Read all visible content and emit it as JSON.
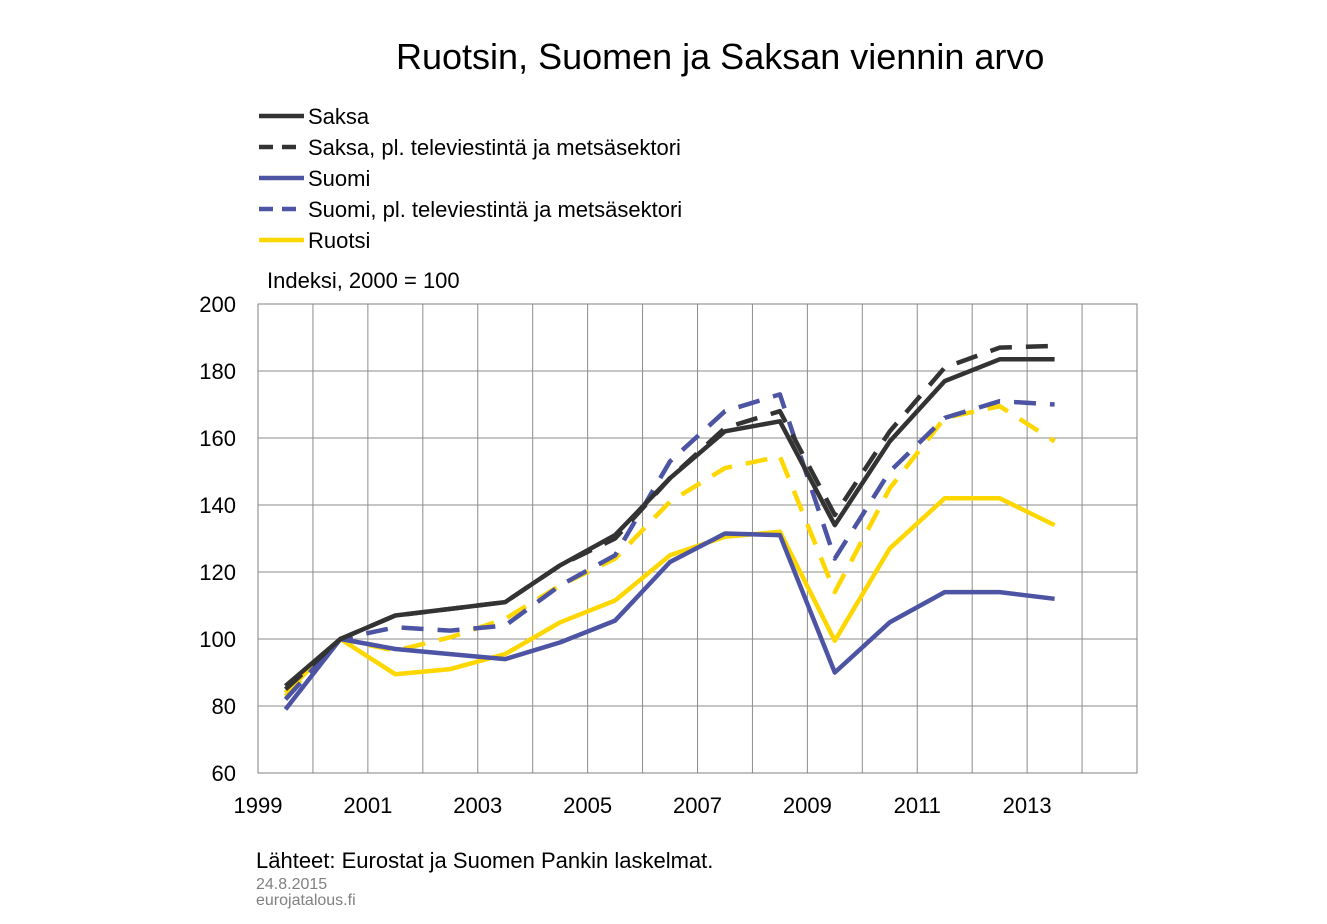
{
  "chart_data": {
    "type": "line",
    "title": "Ruotsin, Suomen ja Saksan viennin arvo",
    "units_label": "Indeksi, 2000 = 100",
    "ylim": [
      60,
      200
    ],
    "y_ticks": [
      "60",
      "80",
      "100",
      "120",
      "140",
      "160",
      "180",
      "200"
    ],
    "x_range": [
      1999,
      2015
    ],
    "x_ticks": [
      "1999",
      "2001",
      "2003",
      "2005",
      "2007",
      "2009",
      "2011",
      "2013"
    ],
    "grid": true,
    "legend_position": "top-left",
    "x": [
      1999,
      2000,
      2001,
      2002,
      2003,
      2004,
      2005,
      2006,
      2007,
      2008,
      2009,
      2010,
      2011,
      2012,
      2013
    ],
    "series": [
      {
        "name": "Saksa",
        "color": "#333333",
        "dash": "solid",
        "values": [
          86,
          100,
          107,
          109,
          111,
          122,
          131,
          148,
          162,
          165,
          134,
          159,
          177,
          183.5,
          183.5
        ]
      },
      {
        "name": "Saksa, pl. televiestintä ja metsäsektori",
        "color": "#333333",
        "dash": "dashed",
        "values": [
          85,
          100,
          107,
          109,
          111,
          122,
          130,
          148,
          163,
          168,
          137,
          162,
          181,
          187,
          187.5
        ]
      },
      {
        "name": "Suomi",
        "color": "#4c54a3",
        "dash": "solid",
        "values": [
          79,
          100,
          97,
          95.5,
          94,
          99,
          105.5,
          123,
          131.5,
          131,
          90,
          105,
          114,
          114,
          112
        ]
      },
      {
        "name": "Suomi, pl. televiestintä ja metsäsektori",
        "color": "#4c54a3",
        "dash": "dashed",
        "values": [
          82,
          100,
          103.5,
          102.5,
          104,
          116,
          125,
          153,
          168,
          173,
          124,
          150,
          166,
          171,
          170
        ]
      },
      {
        "name": "Ruotsi (pl. televiestintä ja metsäsektori)",
        "color": "#ffd700",
        "dash": "dashed",
        "in_legend": false,
        "values": [
          83,
          100,
          96.5,
          100.5,
          106,
          116,
          124,
          141,
          151,
          154.5,
          114,
          145,
          166,
          169.5,
          159
        ]
      },
      {
        "name": "Ruotsi",
        "color": "#ffd700",
        "dash": "solid",
        "values": [
          84,
          100,
          89.5,
          91,
          95.5,
          105,
          111.5,
          125,
          130.5,
          132,
          99.5,
          127,
          142,
          142,
          134
        ]
      }
    ]
  },
  "source_note": "Lähteet: Eurostat ja Suomen Pankin laskelmat.",
  "footer": {
    "date": "24.8.2015",
    "site": "eurojatalous.fi"
  }
}
